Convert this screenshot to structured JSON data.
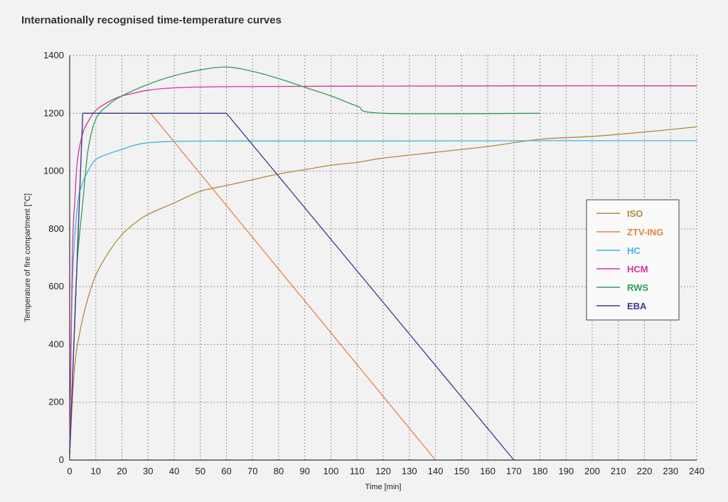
{
  "chart_data": {
    "type": "line",
    "title": "Internationally recognised time-temperature curves",
    "xlabel": "Time [min]",
    "ylabel": "Temperature of fire compartment [°C]",
    "xlim": [
      0,
      240
    ],
    "ylim": [
      0,
      1400
    ],
    "xticks": [
      0,
      10,
      20,
      30,
      40,
      50,
      60,
      70,
      80,
      90,
      100,
      110,
      120,
      130,
      140,
      150,
      160,
      170,
      180,
      190,
      200,
      210,
      220,
      230,
      240
    ],
    "yticks": [
      0,
      200,
      400,
      600,
      800,
      1000,
      1200,
      1400
    ],
    "grid": true,
    "legend_position": "right-center",
    "series": [
      {
        "name": "ISO",
        "color": "#b28a3c",
        "points": [
          [
            0,
            20
          ],
          [
            1,
            200
          ],
          [
            2,
            330
          ],
          [
            3,
            400
          ],
          [
            5,
            490
          ],
          [
            7,
            560
          ],
          [
            10,
            640
          ],
          [
            15,
            720
          ],
          [
            20,
            780
          ],
          [
            25,
            820
          ],
          [
            30,
            850
          ],
          [
            40,
            890
          ],
          [
            50,
            930
          ],
          [
            60,
            950
          ],
          [
            70,
            970
          ],
          [
            80,
            990
          ],
          [
            90,
            1005
          ],
          [
            100,
            1020
          ],
          [
            110,
            1030
          ],
          [
            120,
            1045
          ],
          [
            140,
            1065
          ],
          [
            160,
            1085
          ],
          [
            180,
            1110
          ],
          [
            200,
            1120
          ],
          [
            220,
            1135
          ],
          [
            240,
            1153
          ]
        ]
      },
      {
        "name": "ZTV-ING",
        "color": "#e8824a",
        "points": [
          [
            0,
            20
          ],
          [
            5,
            1200
          ],
          [
            31,
            1200
          ],
          [
            140,
            0
          ]
        ]
      },
      {
        "name": "HC",
        "color": "#3fb4e0",
        "points": [
          [
            0,
            20
          ],
          [
            1,
            600
          ],
          [
            3,
            880
          ],
          [
            5,
            960
          ],
          [
            7,
            1000
          ],
          [
            10,
            1040
          ],
          [
            15,
            1060
          ],
          [
            20,
            1075
          ],
          [
            25,
            1090
          ],
          [
            30,
            1098
          ],
          [
            40,
            1103
          ],
          [
            60,
            1104
          ],
          [
            120,
            1104
          ],
          [
            180,
            1105
          ],
          [
            240,
            1105
          ]
        ]
      },
      {
        "name": "HCM",
        "color": "#d6339a",
        "points": [
          [
            0,
            20
          ],
          [
            1,
            700
          ],
          [
            2,
            900
          ],
          [
            3,
            1040
          ],
          [
            5,
            1130
          ],
          [
            7,
            1170
          ],
          [
            10,
            1210
          ],
          [
            15,
            1240
          ],
          [
            20,
            1260
          ],
          [
            25,
            1270
          ],
          [
            30,
            1280
          ],
          [
            40,
            1288
          ],
          [
            60,
            1292
          ],
          [
            120,
            1294
          ],
          [
            180,
            1295
          ],
          [
            240,
            1295
          ]
        ]
      },
      {
        "name": "RWS",
        "color": "#2d9e5a",
        "points": [
          [
            0,
            20
          ],
          [
            2,
            500
          ],
          [
            3,
            700
          ],
          [
            5,
            890
          ],
          [
            7,
            1070
          ],
          [
            10,
            1180
          ],
          [
            15,
            1230
          ],
          [
            20,
            1260
          ],
          [
            30,
            1300
          ],
          [
            40,
            1330
          ],
          [
            50,
            1350
          ],
          [
            60,
            1360
          ],
          [
            70,
            1345
          ],
          [
            80,
            1320
          ],
          [
            90,
            1290
          ],
          [
            100,
            1260
          ],
          [
            110,
            1225
          ],
          [
            120,
            1200
          ],
          [
            180,
            1200
          ]
        ]
      },
      {
        "name": "EBA",
        "color": "#3b3a8e",
        "points": [
          [
            0,
            20
          ],
          [
            5,
            1200
          ],
          [
            60,
            1200
          ],
          [
            170,
            0
          ]
        ]
      }
    ]
  }
}
